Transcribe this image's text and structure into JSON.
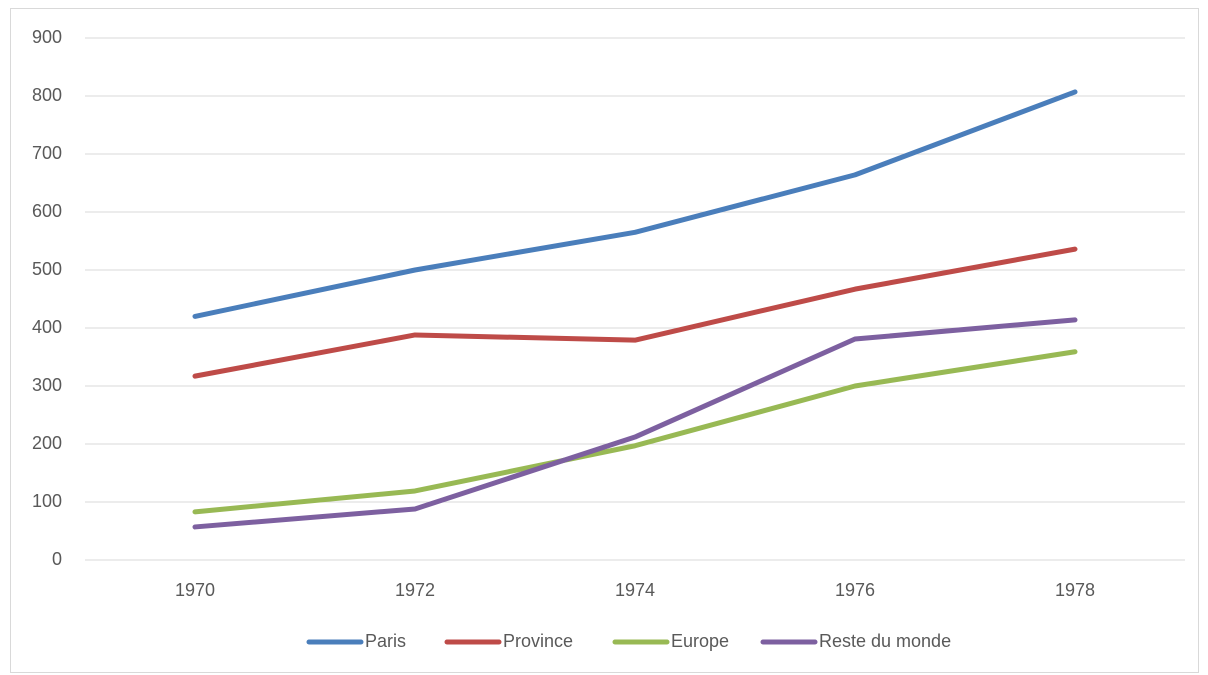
{
  "chart_data": {
    "type": "line",
    "x": [
      1970,
      1972,
      1974,
      1976,
      1978
    ],
    "xlim": [
      1969,
      1979
    ],
    "xticks": [
      1970,
      1972,
      1974,
      1976,
      1978
    ],
    "ylim": [
      0,
      900
    ],
    "yticks": [
      0,
      100,
      200,
      300,
      400,
      500,
      600,
      700,
      800,
      900
    ],
    "grid": true,
    "legend": "bottom",
    "series": [
      {
        "name": "Paris",
        "color": "#4a7ebb",
        "values": [
          420,
          500,
          565,
          664,
          807
        ]
      },
      {
        "name": "Province",
        "color": "#be4b48",
        "values": [
          317,
          388,
          379,
          467,
          536
        ]
      },
      {
        "name": "Europe",
        "color": "#98b954",
        "values": [
          83,
          119,
          197,
          300,
          359
        ]
      },
      {
        "name": "Reste du monde",
        "color": "#7d60a0",
        "values": [
          57,
          88,
          212,
          381,
          414
        ]
      }
    ]
  }
}
